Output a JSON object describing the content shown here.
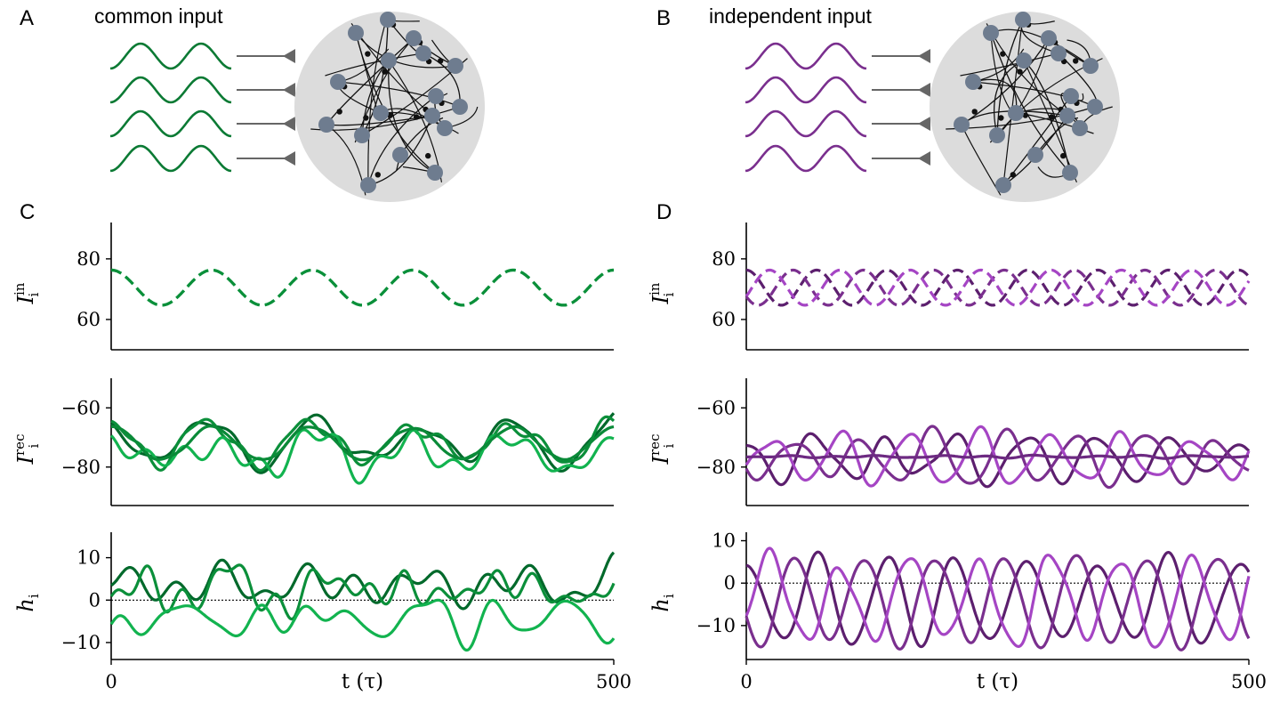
{
  "panel_letters": [
    "A",
    "B",
    "C",
    "D"
  ],
  "colors": {
    "green_dark": "#00692b",
    "green_mid": "#0b8f3a",
    "green_light": "#12b34f",
    "purple_dark": "#5c1f6e",
    "purple_mid": "#7a2f8e",
    "purple_light": "#a545c4",
    "neuron": "#6e7c8f",
    "network_bg": "#dcdcdc",
    "arrow": "#666666"
  },
  "schematics": [
    {
      "label": "common input",
      "color": "#0b7a34",
      "mode": "common"
    },
    {
      "label": "independent input",
      "color": "#7a2f8e",
      "mode": "independent"
    }
  ],
  "icons": {
    "input_wave": "sine-wave-icon",
    "synapse_arrow": "synapse-arrow-icon",
    "network": "network-icon"
  },
  "chart_data": [
    {
      "type": "line",
      "panel": "C",
      "row": "input",
      "ylabel": "I_i^in",
      "ylabel_main": "I",
      "ylabel_sub": "i",
      "ylabel_sup": "in",
      "xlim": [
        0,
        500
      ],
      "ylim": [
        50,
        92
      ],
      "yticks": [
        60,
        80
      ],
      "series": [
        {
          "kind": "sine",
          "offset": 70.5,
          "amp": 5.8,
          "period": 100,
          "phase": 0,
          "noise": 0,
          "style": "dashed",
          "color": "#12b34f"
        },
        {
          "kind": "sine",
          "offset": 70.5,
          "amp": 5.8,
          "period": 100,
          "phase": 0,
          "noise": 0,
          "style": "dashed",
          "color": "#0b8f3a"
        }
      ]
    },
    {
      "type": "line",
      "panel": "C",
      "row": "recurrent",
      "ylabel": "I_i^rec",
      "ylabel_main": "I",
      "ylabel_sub": "i",
      "ylabel_sup": "rec",
      "xlim": [
        0,
        500
      ],
      "ylim": [
        -93,
        -50
      ],
      "yticks": [
        -80,
        -60
      ],
      "series": [
        {
          "kind": "sine",
          "offset": -71.5,
          "amp": 6.8,
          "period": 100,
          "phase": 0,
          "noise": 4.5,
          "seed": 11,
          "color": "#00692b"
        },
        {
          "kind": "sine",
          "offset": -71.5,
          "amp": 6.8,
          "period": 100,
          "phase": 0,
          "noise": 4.5,
          "seed": 23,
          "color": "#0b8f3a"
        },
        {
          "kind": "sine",
          "offset": -75.5,
          "amp": 5.0,
          "period": 100,
          "phase": 0,
          "noise": 5.5,
          "seed": 37,
          "color": "#12b34f"
        },
        {
          "kind": "sine",
          "offset": -72,
          "amp": 5.6,
          "period": 100,
          "phase": 0,
          "noise": 0.6,
          "seed": 41,
          "color": "#0a8a38"
        }
      ]
    },
    {
      "type": "line",
      "panel": "C",
      "row": "h",
      "ylabel": "h_i",
      "ylabel_main": "h",
      "ylabel_sub": "i",
      "ylabel_sup": "",
      "xlim": [
        0,
        500
      ],
      "ylim": [
        -14,
        16
      ],
      "yticks": [
        -10,
        0,
        10
      ],
      "xticks": [
        0,
        500
      ],
      "xlabel": "t (τ)",
      "zero_line": true,
      "series": [
        {
          "kind": "noise",
          "offset": 3.5,
          "amp": 0,
          "period": 100,
          "phase": 0,
          "noise": 5.5,
          "seed": 53,
          "color": "#00692b"
        },
        {
          "kind": "noise",
          "offset": 2.5,
          "amp": 0,
          "period": 100,
          "phase": 0,
          "noise": 6.0,
          "seed": 61,
          "color": "#0b8f3a"
        },
        {
          "kind": "noise",
          "offset": -4.5,
          "amp": 0,
          "period": 100,
          "phase": 0,
          "noise": 6.0,
          "seed": 79,
          "color": "#12b34f"
        }
      ]
    },
    {
      "type": "line",
      "panel": "D",
      "row": "input",
      "ylabel": "I_i^in",
      "ylabel_main": "I",
      "ylabel_sub": "i",
      "ylabel_sup": "in",
      "xlim": [
        0,
        500
      ],
      "ylim": [
        50,
        92
      ],
      "yticks": [
        60,
        80
      ],
      "series": [
        {
          "kind": "sine",
          "offset": 70.5,
          "amp": 5.8,
          "period": 70,
          "phase": 0.0,
          "noise": 0,
          "style": "dashed",
          "color": "#5c1f6e"
        },
        {
          "kind": "sine",
          "offset": 70.5,
          "amp": 5.8,
          "period": 70,
          "phase": 2.1,
          "noise": 0,
          "style": "dashed",
          "color": "#7a2f8e"
        },
        {
          "kind": "sine",
          "offset": 70.5,
          "amp": 5.8,
          "period": 70,
          "phase": 4.2,
          "noise": 0,
          "style": "dashed",
          "color": "#a545c4"
        }
      ]
    },
    {
      "type": "line",
      "panel": "D",
      "row": "recurrent",
      "ylabel": "I_i^rec",
      "ylabel_main": "I",
      "ylabel_sub": "i",
      "ylabel_sup": "rec",
      "xlim": [
        0,
        500
      ],
      "ylim": [
        -93,
        -50
      ],
      "yticks": [
        -80,
        -60
      ],
      "series": [
        {
          "kind": "sine",
          "offset": -77,
          "amp": 7.0,
          "period": 70,
          "phase": 0.0,
          "noise": 3.5,
          "seed": 83,
          "color": "#5c1f6e"
        },
        {
          "kind": "sine",
          "offset": -77,
          "amp": 7.0,
          "period": 70,
          "phase": 2.1,
          "noise": 3.5,
          "seed": 97,
          "color": "#7a2f8e"
        },
        {
          "kind": "sine",
          "offset": -77,
          "amp": 7.0,
          "period": 70,
          "phase": 4.2,
          "noise": 3.5,
          "seed": 101,
          "color": "#a545c4"
        },
        {
          "kind": "sine",
          "offset": -76.5,
          "amp": 0,
          "period": 70,
          "phase": 0,
          "noise": 0.5,
          "seed": 103,
          "color": "#6d2a82"
        }
      ]
    },
    {
      "type": "line",
      "panel": "D",
      "row": "h",
      "ylabel": "h_i",
      "ylabel_main": "h",
      "ylabel_sub": "i",
      "ylabel_sup": "",
      "xlim": [
        0,
        500
      ],
      "ylim": [
        -18,
        12
      ],
      "yticks": [
        -10,
        0,
        10
      ],
      "xticks": [
        0,
        500
      ],
      "xlabel": "t (τ)",
      "zero_line": true,
      "series": [
        {
          "kind": "sine",
          "offset": -4,
          "amp": 9.5,
          "period": 70,
          "phase": 0.0,
          "noise": 2.5,
          "seed": 107,
          "color": "#5c1f6e"
        },
        {
          "kind": "sine",
          "offset": -4,
          "amp": 9.5,
          "period": 70,
          "phase": 2.1,
          "noise": 2.5,
          "seed": 109,
          "color": "#7a2f8e"
        },
        {
          "kind": "sine",
          "offset": -4,
          "amp": 9.5,
          "period": 70,
          "phase": 4.2,
          "noise": 2.5,
          "seed": 113,
          "color": "#a545c4"
        }
      ]
    }
  ]
}
